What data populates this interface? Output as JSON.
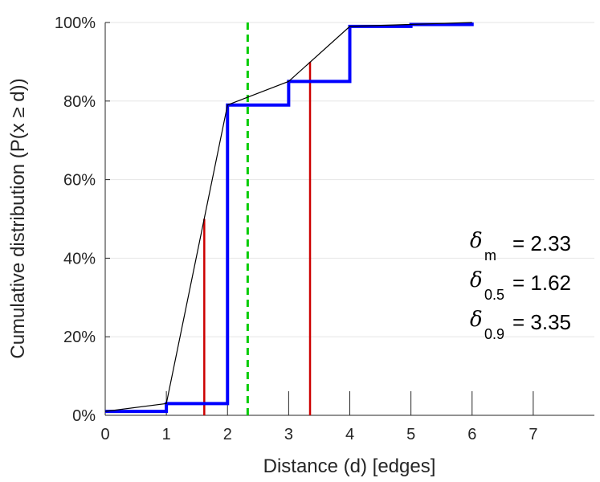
{
  "chart_data": {
    "type": "line",
    "xlabel": "Distance (d) [edges]",
    "ylabel": "Cumulative distribution (P(x ≥ d))",
    "xlim": [
      0,
      8
    ],
    "ylim": [
      0,
      100
    ],
    "x_ticks": [
      "0",
      "1",
      "2",
      "3",
      "4",
      "5",
      "6",
      "7"
    ],
    "y_ticks": [
      "0%",
      "20%",
      "40%",
      "60%",
      "80%",
      "100%"
    ],
    "grid": "horizontal",
    "series": [
      {
        "style": "step",
        "color": "#0000ff",
        "x": [
          0,
          1,
          2,
          3,
          4,
          5,
          6
        ],
        "y": [
          1,
          3,
          79,
          85,
          99,
          99.5,
          100
        ]
      },
      {
        "style": "line",
        "color": "#000000",
        "x": [
          0,
          1,
          2,
          3,
          4,
          5,
          6
        ],
        "y": [
          1,
          3,
          79,
          85,
          99,
          99.5,
          100
        ]
      }
    ],
    "vlines": [
      {
        "x": 1.62,
        "y_top": 50,
        "color": "#cc0000",
        "style": "solid"
      },
      {
        "x": 3.35,
        "y_top": 90,
        "color": "#cc0000",
        "style": "solid"
      },
      {
        "x": 2.33,
        "y_top": 100,
        "color": "#00cc00",
        "style": "dashed"
      }
    ],
    "stats": [
      {
        "symbol": "δ",
        "sub": "m",
        "text": "= 2.33"
      },
      {
        "symbol": "δ",
        "sub": "0.5",
        "text": "= 1.62"
      },
      {
        "symbol": "δ",
        "sub": "0.9",
        "text": "= 3.35"
      }
    ]
  }
}
